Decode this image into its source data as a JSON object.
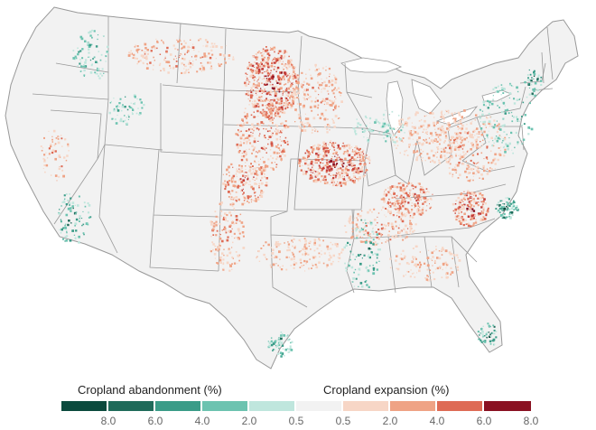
{
  "legend": {
    "abandonment_title": "Cropland abandonment (%)",
    "expansion_title": "Cropland expansion (%)",
    "colors": [
      "#0b4a3d",
      "#1f6b5a",
      "#3a9c88",
      "#6cc3b0",
      "#bfe6dd",
      "#f2f2f2",
      "#f7d6c6",
      "#efa385",
      "#de6b55",
      "#c33d3a",
      "#8a1122"
    ],
    "ticks": [
      "8.0",
      "6.0",
      "4.0",
      "2.0",
      "0.5",
      "0.5",
      "2.0",
      "4.0",
      "6.0",
      "8.0"
    ]
  },
  "map": {
    "land_color": "#f2f2f2",
    "border_color": "#999999",
    "water_color": "#ffffff"
  }
}
